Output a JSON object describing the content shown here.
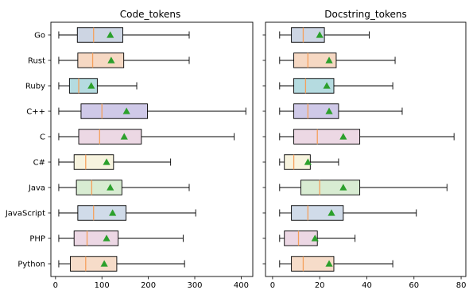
{
  "chart_data": [
    {
      "type": "box",
      "title": "Code_tokens",
      "xlim": [
        -10,
        425
      ],
      "xticks": [
        0,
        100,
        200,
        300,
        400
      ],
      "categories": [
        "Go",
        "Rust",
        "Ruby",
        "C++",
        "C",
        "C#",
        "Java",
        "JavaScript",
        "PHP",
        "Python"
      ],
      "colors": [
        "#cdd5e3",
        "#f6d8c3",
        "#b5dbe0",
        "#cfc9e8",
        "#ecd8e4",
        "#f7f3de",
        "#d8ecd2",
        "#d0dbe9",
        "#ecd7e4",
        "#f6dcc9"
      ],
      "median_color": "#f5a05c",
      "mean_color": "#2ca02c",
      "boxes": [
        {
          "whislo": 7,
          "q1": 47,
          "med": 82,
          "q3": 145,
          "whishi": 288,
          "mean": 118
        },
        {
          "whislo": 7,
          "q1": 48,
          "med": 80,
          "q3": 147,
          "whishi": 288,
          "mean": 120
        },
        {
          "whislo": 7,
          "q1": 30,
          "med": 50,
          "q3": 90,
          "whishi": 175,
          "mean": 77
        },
        {
          "whislo": 7,
          "q1": 55,
          "med": 100,
          "q3": 198,
          "whishi": 410,
          "mean": 153
        },
        {
          "whislo": 7,
          "q1": 50,
          "med": 95,
          "q3": 185,
          "whishi": 385,
          "mean": 148
        },
        {
          "whislo": 7,
          "q1": 40,
          "med": 65,
          "q3": 125,
          "whishi": 248,
          "mean": 110
        },
        {
          "whislo": 7,
          "q1": 45,
          "med": 78,
          "q3": 143,
          "whishi": 288,
          "mean": 118
        },
        {
          "whislo": 7,
          "q1": 48,
          "med": 82,
          "q3": 152,
          "whishi": 302,
          "mean": 123
        },
        {
          "whislo": 7,
          "q1": 40,
          "med": 68,
          "q3": 135,
          "whishi": 275,
          "mean": 110
        },
        {
          "whislo": 7,
          "q1": 32,
          "med": 65,
          "q3": 132,
          "whishi": 278,
          "mean": 105
        }
      ]
    },
    {
      "type": "box",
      "title": "Docstring_tokens",
      "xlim": [
        -3,
        82
      ],
      "xticks": [
        0,
        20,
        40,
        60,
        80
      ],
      "categories": [
        "Go",
        "Rust",
        "Ruby",
        "C++",
        "C",
        "C#",
        "Java",
        "JavaScript",
        "PHP",
        "Python"
      ],
      "colors": [
        "#cdd5e3",
        "#f6d8c3",
        "#b5dbe0",
        "#cfc9e8",
        "#ecd8e4",
        "#f7f3de",
        "#d8ecd2",
        "#d0dbe9",
        "#ecd7e4",
        "#f6dcc9"
      ],
      "median_color": "#f5a05c",
      "mean_color": "#2ca02c",
      "boxes": [
        {
          "whislo": 3,
          "q1": 8,
          "med": 13,
          "q3": 22,
          "whishi": 41,
          "mean": 20
        },
        {
          "whislo": 3,
          "q1": 9,
          "med": 15,
          "q3": 27,
          "whishi": 52,
          "mean": 24
        },
        {
          "whislo": 3,
          "q1": 9,
          "med": 14,
          "q3": 26,
          "whishi": 51,
          "mean": 23
        },
        {
          "whislo": 3,
          "q1": 9,
          "med": 15,
          "q3": 28,
          "whishi": 55,
          "mean": 24
        },
        {
          "whislo": 3,
          "q1": 9,
          "med": 19,
          "q3": 37,
          "whishi": 77,
          "mean": 30
        },
        {
          "whislo": 3,
          "q1": 5,
          "med": 9,
          "q3": 16,
          "whishi": 28,
          "mean": 15
        },
        {
          "whislo": 3,
          "q1": 12,
          "med": 20,
          "q3": 37,
          "whishi": 74,
          "mean": 30
        },
        {
          "whislo": 3,
          "q1": 8,
          "med": 15,
          "q3": 30,
          "whishi": 61,
          "mean": 25
        },
        {
          "whislo": 3,
          "q1": 5,
          "med": 11,
          "q3": 19,
          "whishi": 35,
          "mean": 18
        },
        {
          "whislo": 3,
          "q1": 8,
          "med": 13,
          "q3": 26,
          "whishi": 51,
          "mean": 24
        }
      ]
    }
  ]
}
